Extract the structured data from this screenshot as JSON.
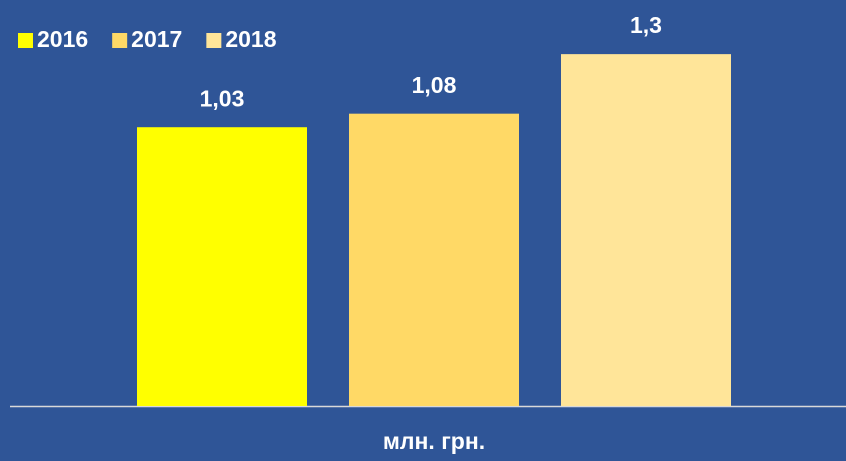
{
  "chart_data": {
    "type": "bar",
    "categories": [
      "млн. грн."
    ],
    "series": [
      {
        "name": "2016",
        "color": "#ffff00",
        "values": [
          1.03
        ],
        "value_labels": [
          "1,03"
        ]
      },
      {
        "name": "2017",
        "color": "#ffd966",
        "values": [
          1.08
        ],
        "value_labels": [
          "1,08"
        ]
      },
      {
        "name": "2018",
        "color": "#ffe599",
        "values": [
          1.3
        ],
        "value_labels": [
          "1,3"
        ]
      }
    ],
    "ylim": [
      0,
      1.5
    ],
    "legend": "top-left",
    "background": "#2f5597"
  }
}
